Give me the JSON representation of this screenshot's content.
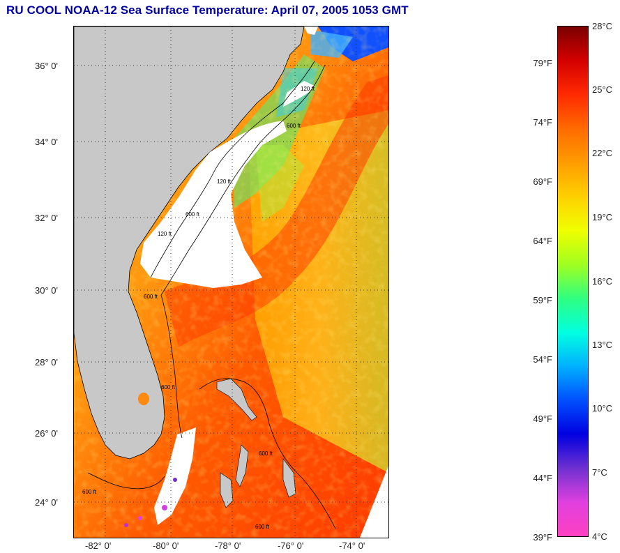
{
  "header": {
    "title": "RU COOL  NOAA-12  Sea Surface Temperature:  April 07, 2005 1053 GMT"
  },
  "map": {
    "lat_labels": [
      "36° 0'",
      "34° 0'",
      "32° 0'",
      "30° 0'",
      "28° 0'",
      "26° 0'",
      "24° 0'"
    ],
    "lon_labels": [
      "-82° 0'",
      "-80° 0'",
      "-78° 0'",
      "-76° 0'",
      "-74° 0'"
    ],
    "isobath_labels": [
      "120 ft",
      "600 ft",
      "120 ft",
      "600 ft",
      "120 ft",
      "600 ft",
      "600 ft",
      "600 ft",
      "600 ft",
      "600 ft"
    ],
    "colors": {
      "land": "#c8c8c8",
      "cloud": "#ffffff",
      "grid": "#333333"
    }
  },
  "colorbar": {
    "fahrenheit_labels": [
      "79°F",
      "74°F",
      "69°F",
      "64°F",
      "59°F",
      "54°F",
      "49°F",
      "44°F",
      "39°F"
    ],
    "celsius_labels": [
      "28°C",
      "25°C",
      "22°C",
      "19°C",
      "16°C",
      "13°C",
      "10°C",
      "7°C",
      "4°C"
    ],
    "range_c": [
      4,
      28
    ],
    "colors": [
      "#7a0000",
      "#d40000",
      "#ff2a00",
      "#ff6a00",
      "#ff9c00",
      "#ffd000",
      "#f0ff00",
      "#a0ff20",
      "#30ff80",
      "#00ffe0",
      "#00b0ff",
      "#0050ff",
      "#0000e0",
      "#7030d0",
      "#e040e0",
      "#ff40c0"
    ]
  }
}
